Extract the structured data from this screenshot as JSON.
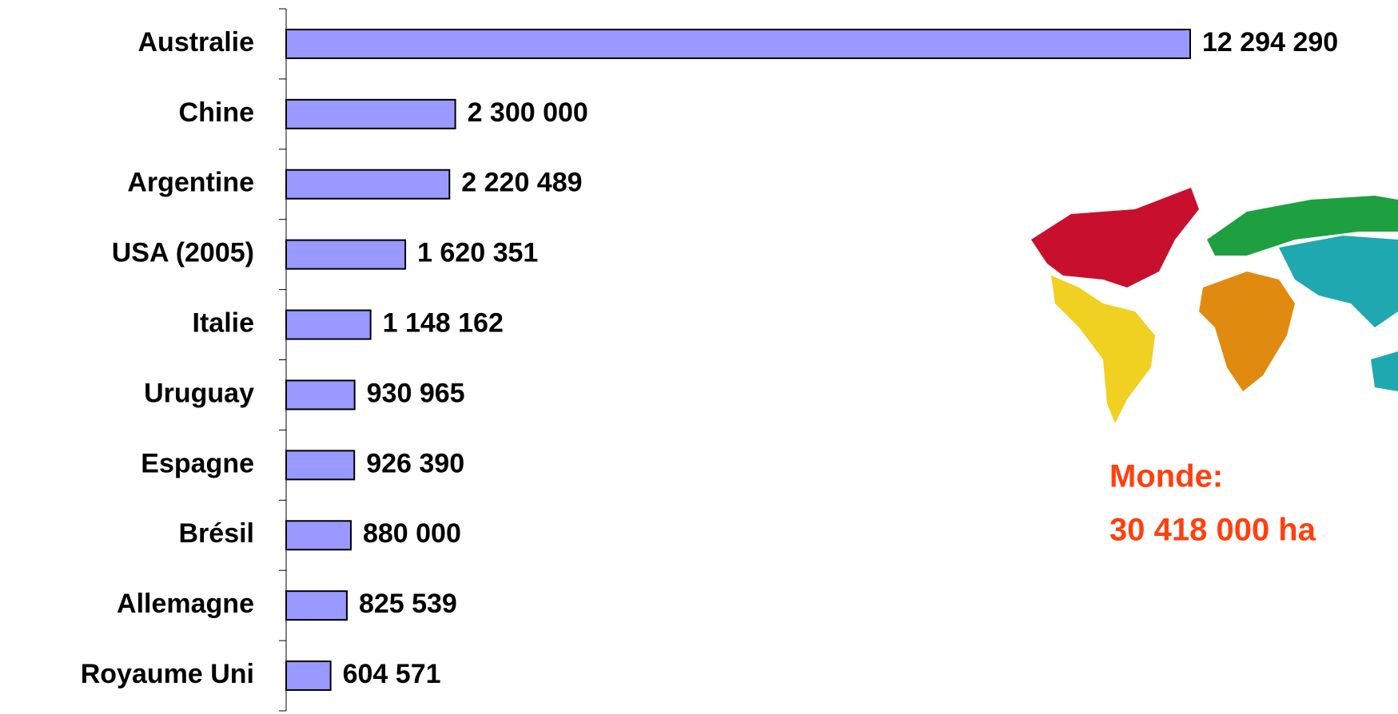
{
  "chart_data": {
    "type": "bar",
    "orientation": "horizontal",
    "categories": [
      "Australie",
      "Chine",
      "Argentine",
      "USA (2005)",
      "Italie",
      "Uruguay",
      "Espagne",
      "Brésil",
      "Allemagne",
      "Royaume Uni"
    ],
    "values": [
      12294290,
      2300000,
      2220489,
      1620351,
      1148162,
      930965,
      926390,
      880000,
      825539,
      604571
    ],
    "value_labels": [
      "12  294 290",
      "2  300 000",
      "2  220 489",
      "1  620 351",
      "1  148 162",
      "930 965",
      "926 390",
      "880 000",
      "825 539",
      "604 571"
    ],
    "color": "#9999ff",
    "annotations": [
      "Monde:",
      "30 418 000 ha"
    ]
  }
}
